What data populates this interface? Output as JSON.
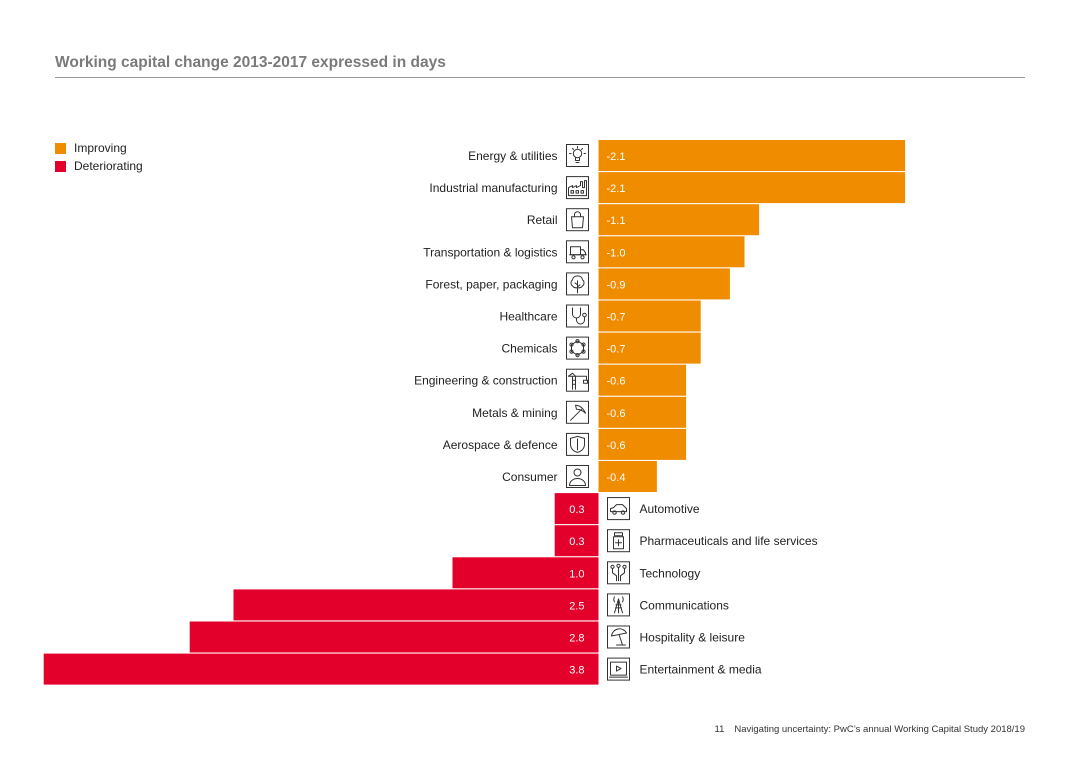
{
  "page": {
    "title": "Working capital change 2013-2017 expressed in days",
    "footer_page": "11",
    "footer_text": "Navigating uncertainty: PwC’s annual Working Capital Study 2018/19"
  },
  "colors": {
    "improving": "#f08c00",
    "deteriorating": "#e3002b",
    "icon_stroke": "#333333"
  },
  "chart_data": {
    "type": "bar",
    "orientation": "horizontal",
    "title": "Working capital change 2013-2017 expressed in days",
    "legend": [
      {
        "label": "Improving",
        "color": "#f08c00"
      },
      {
        "label": "Deteriorating",
        "color": "#e3002b"
      }
    ],
    "legend_position": "top-left",
    "categories": [
      "Energy & utilities",
      "Industrial manufacturing",
      "Retail",
      "Transportation & logistics",
      "Forest, paper, packaging",
      "Healthcare",
      "Chemicals",
      "Engineering & construction",
      "Metals & mining",
      "Aerospace & defence",
      "Consumer",
      "Automotive",
      "Pharmaceuticals and life services",
      "Technology",
      "Communications",
      "Hospitality & leisure",
      "Entertainment & media"
    ],
    "values": [
      -2.1,
      -2.1,
      -1.1,
      -1.0,
      -0.9,
      -0.7,
      -0.7,
      -0.6,
      -0.6,
      -0.6,
      -0.4,
      0.3,
      0.3,
      1.0,
      2.5,
      2.8,
      3.8
    ],
    "value_labels": [
      "-2.1",
      "-2.1",
      "-1.1",
      "-1.0",
      "-0.9",
      "-0.7",
      "-0.7",
      "-0.6",
      "-0.6",
      "-0.6",
      "-0.4",
      "0.3",
      "0.3",
      "1.0",
      "2.5",
      "2.8",
      "3.8"
    ],
    "icons": [
      "lightbulb-icon",
      "factory-icon",
      "shopping-bag-icon",
      "truck-icon",
      "tree-icon",
      "stethoscope-icon",
      "molecule-icon",
      "crane-icon",
      "pickaxe-icon",
      "shield-icon",
      "person-icon",
      "car-icon",
      "medicine-bottle-icon",
      "circuit-icon",
      "antenna-tower-icon",
      "beach-umbrella-icon",
      "play-screen-icon"
    ],
    "xlabel": "",
    "ylabel": "",
    "grid": false
  }
}
